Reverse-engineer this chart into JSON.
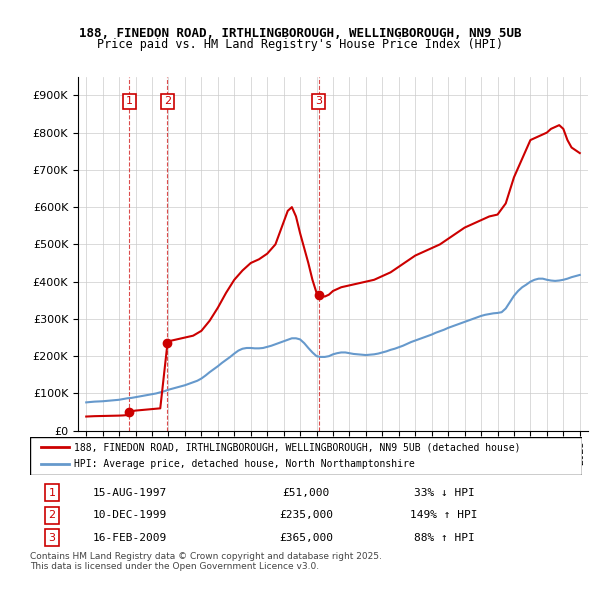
{
  "title1": "188, FINEDON ROAD, IRTHLINGBOROUGH, WELLINGBOROUGH, NN9 5UB",
  "title2": "Price paid vs. HM Land Registry's House Price Index (HPI)",
  "legend_property": "188, FINEDON ROAD, IRTHLINGBOROUGH, WELLINGBOROUGH, NN9 5UB (detached house)",
  "legend_hpi": "HPI: Average price, detached house, North Northamptonshire",
  "footer1": "Contains HM Land Registry data © Crown copyright and database right 2025.",
  "footer2": "This data is licensed under the Open Government Licence v3.0.",
  "sale_points": [
    {
      "num": 1,
      "date": "15-AUG-1997",
      "price": 51000,
      "pct": "33% ↓ HPI",
      "year": 1997.62
    },
    {
      "num": 2,
      "date": "10-DEC-1999",
      "price": 235000,
      "pct": "149% ↑ HPI",
      "year": 1999.94
    },
    {
      "num": 3,
      "date": "16-FEB-2009",
      "price": 365000,
      "pct": "88% ↑ HPI",
      "year": 2009.12
    }
  ],
  "ylim": [
    0,
    950000
  ],
  "yticks": [
    0,
    100000,
    200000,
    300000,
    400000,
    500000,
    600000,
    700000,
    800000,
    900000
  ],
  "property_color": "#cc0000",
  "hpi_color": "#6699cc",
  "background_color": "#ffffff",
  "hpi_x": [
    1995,
    1995.25,
    1995.5,
    1995.75,
    1996,
    1996.25,
    1996.5,
    1996.75,
    1997,
    1997.25,
    1997.5,
    1997.75,
    1998,
    1998.25,
    1998.5,
    1998.75,
    1999,
    1999.25,
    1999.5,
    1999.75,
    2000,
    2000.25,
    2000.5,
    2000.75,
    2001,
    2001.25,
    2001.5,
    2001.75,
    2002,
    2002.25,
    2002.5,
    2002.75,
    2003,
    2003.25,
    2003.5,
    2003.75,
    2004,
    2004.25,
    2004.5,
    2004.75,
    2005,
    2005.25,
    2005.5,
    2005.75,
    2006,
    2006.25,
    2006.5,
    2006.75,
    2007,
    2007.25,
    2007.5,
    2007.75,
    2008,
    2008.25,
    2008.5,
    2008.75,
    2009,
    2009.25,
    2009.5,
    2009.75,
    2010,
    2010.25,
    2010.5,
    2010.75,
    2011,
    2011.25,
    2011.5,
    2011.75,
    2012,
    2012.25,
    2012.5,
    2012.75,
    2013,
    2013.25,
    2013.5,
    2013.75,
    2014,
    2014.25,
    2014.5,
    2014.75,
    2015,
    2015.25,
    2015.5,
    2015.75,
    2016,
    2016.25,
    2016.5,
    2016.75,
    2017,
    2017.25,
    2017.5,
    2017.75,
    2018,
    2018.25,
    2018.5,
    2018.75,
    2019,
    2019.25,
    2019.5,
    2019.75,
    2020,
    2020.25,
    2020.5,
    2020.75,
    2021,
    2021.25,
    2021.5,
    2021.75,
    2022,
    2022.25,
    2022.5,
    2022.75,
    2023,
    2023.25,
    2023.5,
    2023.75,
    2024,
    2024.25,
    2024.5,
    2024.75,
    2025
  ],
  "hpi_y": [
    76000,
    77000,
    78000,
    78500,
    79000,
    80000,
    81000,
    82000,
    83000,
    85000,
    87000,
    88000,
    90000,
    92000,
    94000,
    96000,
    98000,
    100000,
    103000,
    106000,
    110000,
    113000,
    116000,
    119000,
    122000,
    126000,
    130000,
    134000,
    140000,
    148000,
    157000,
    165000,
    173000,
    182000,
    190000,
    198000,
    207000,
    215000,
    220000,
    222000,
    222000,
    221000,
    221000,
    222000,
    225000,
    228000,
    232000,
    236000,
    240000,
    244000,
    248000,
    248000,
    245000,
    235000,
    222000,
    210000,
    200000,
    198000,
    198000,
    200000,
    205000,
    208000,
    210000,
    210000,
    208000,
    206000,
    205000,
    204000,
    203000,
    204000,
    205000,
    207000,
    210000,
    213000,
    217000,
    220000,
    224000,
    228000,
    233000,
    238000,
    242000,
    246000,
    250000,
    254000,
    258000,
    263000,
    267000,
    271000,
    276000,
    280000,
    284000,
    288000,
    292000,
    296000,
    300000,
    304000,
    308000,
    311000,
    313000,
    315000,
    316000,
    318000,
    328000,
    345000,
    362000,
    375000,
    385000,
    392000,
    400000,
    405000,
    408000,
    408000,
    405000,
    403000,
    402000,
    403000,
    405000,
    408000,
    412000,
    415000,
    418000
  ],
  "prop_x": [
    1995,
    1995.5,
    1996,
    1996.5,
    1997,
    1997.25,
    1997.5,
    1997.62,
    1997.75,
    1998,
    1998.5,
    1999,
    1999.5,
    1999.94,
    2000,
    2000.5,
    2001,
    2001.5,
    2002,
    2002.5,
    2003,
    2003.5,
    2004,
    2004.5,
    2005,
    2005.5,
    2006,
    2006.5,
    2007,
    2007.25,
    2007.5,
    2007.75,
    2008,
    2008.25,
    2008.5,
    2008.75,
    2009,
    2009.12,
    2009.5,
    2009.75,
    2010,
    2010.5,
    2011,
    2011.5,
    2012,
    2012.5,
    2013,
    2013.5,
    2014,
    2014.5,
    2015,
    2015.5,
    2016,
    2016.5,
    2017,
    2017.5,
    2018,
    2018.5,
    2019,
    2019.5,
    2020,
    2020.5,
    2021,
    2021.5,
    2022,
    2022.5,
    2023,
    2023.25,
    2023.5,
    2023.75,
    2024,
    2024.25,
    2024.5,
    2025
  ],
  "prop_y": [
    38000,
    39000,
    39500,
    40000,
    40500,
    41000,
    42000,
    51000,
    52000,
    54000,
    56000,
    58000,
    60000,
    235000,
    240000,
    245000,
    250000,
    255000,
    268000,
    295000,
    330000,
    370000,
    405000,
    430000,
    450000,
    460000,
    475000,
    500000,
    560000,
    590000,
    600000,
    575000,
    530000,
    490000,
    450000,
    405000,
    370000,
    365000,
    360000,
    365000,
    375000,
    385000,
    390000,
    395000,
    400000,
    405000,
    415000,
    425000,
    440000,
    455000,
    470000,
    480000,
    490000,
    500000,
    515000,
    530000,
    545000,
    555000,
    565000,
    575000,
    580000,
    610000,
    680000,
    730000,
    780000,
    790000,
    800000,
    810000,
    815000,
    820000,
    810000,
    780000,
    760000,
    745000
  ]
}
